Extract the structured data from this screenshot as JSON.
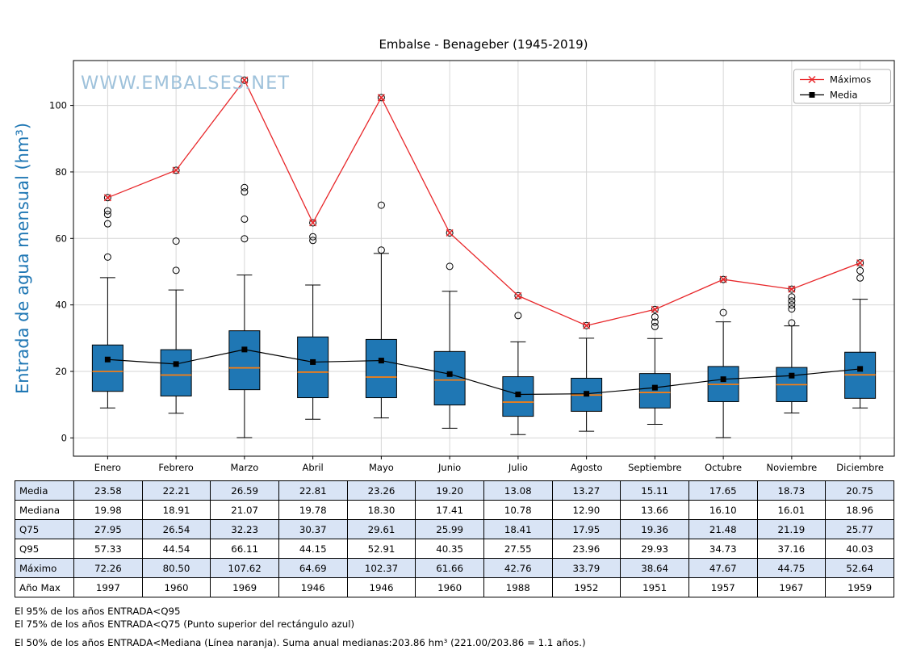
{
  "title": "Embalse - Benageber (1945-2019)",
  "watermark": "WWW.EMBALSES.NET",
  "ylabel": "Entrada de agua mensual (hm³)",
  "legend": {
    "maximos_label": "Máximos",
    "media_label": "Media"
  },
  "colors": {
    "box_fill": "#1f77b4",
    "median": "#ff7f0e",
    "max_line": "#e8272a",
    "mean_line": "#000000",
    "axis_label": "#1f77b4",
    "watermark": "#9fc2db",
    "grid": "#d6d6d6",
    "table_shaded": "#d9e4f5"
  },
  "chart_data": {
    "type": "boxplot",
    "title": "Embalse - Benageber (1945-2019)",
    "xlabel": "",
    "ylabel": "Entrada de agua mensual (hm³)",
    "grid": true,
    "legend_position": "top-right",
    "categories": [
      "Enero",
      "Febrero",
      "Marzo",
      "Abril",
      "Mayo",
      "Junio",
      "Julio",
      "Agosto",
      "Septiembre",
      "Octubre",
      "Noviembre",
      "Diciembre"
    ],
    "yticks": [
      0,
      20,
      40,
      60,
      80,
      100
    ],
    "ylim": [
      -5.5,
      113.5
    ],
    "boxes": [
      {
        "q1": 14.0,
        "median": 19.98,
        "q3": 27.95,
        "whisker_low": 9.0,
        "whisker_high": 48.2,
        "outliers": [
          54.4,
          64.4,
          67.2,
          68.3,
          72.26
        ]
      },
      {
        "q1": 12.6,
        "median": 18.91,
        "q3": 26.54,
        "whisker_low": 7.4,
        "whisker_high": 44.5,
        "outliers": [
          50.4,
          59.2,
          80.5
        ]
      },
      {
        "q1": 14.5,
        "median": 21.07,
        "q3": 32.23,
        "whisker_low": 0.1,
        "whisker_high": 49.0,
        "outliers": [
          59.9,
          65.8,
          74.0,
          75.3,
          107.62
        ]
      },
      {
        "q1": 12.1,
        "median": 19.78,
        "q3": 30.37,
        "whisker_low": 5.6,
        "whisker_high": 46.0,
        "outliers": [
          59.4,
          60.5,
          64.69
        ]
      },
      {
        "q1": 12.1,
        "median": 18.3,
        "q3": 29.61,
        "whisker_low": 6.0,
        "whisker_high": 55.5,
        "outliers": [
          56.5,
          70.0,
          102.37
        ]
      },
      {
        "q1": 9.9,
        "median": 17.41,
        "q3": 25.99,
        "whisker_low": 2.9,
        "whisker_high": 44.1,
        "outliers": [
          51.6,
          61.66
        ]
      },
      {
        "q1": 6.5,
        "median": 10.78,
        "q3": 18.41,
        "whisker_low": 1.0,
        "whisker_high": 28.9,
        "outliers": [
          36.8,
          42.76
        ]
      },
      {
        "q1": 8.0,
        "median": 12.9,
        "q3": 17.95,
        "whisker_low": 2.0,
        "whisker_high": 30.0,
        "outliers": [
          33.79
        ]
      },
      {
        "q1": 9.0,
        "median": 13.66,
        "q3": 19.36,
        "whisker_low": 4.1,
        "whisker_high": 29.9,
        "outliers": [
          33.5,
          34.8,
          36.4,
          38.64
        ]
      },
      {
        "q1": 10.9,
        "median": 16.1,
        "q3": 21.48,
        "whisker_low": 0.1,
        "whisker_high": 34.9,
        "outliers": [
          37.7,
          47.67
        ]
      },
      {
        "q1": 10.9,
        "median": 16.01,
        "q3": 21.19,
        "whisker_low": 7.5,
        "whisker_high": 33.7,
        "outliers": [
          34.6,
          38.8,
          40.0,
          41.2,
          42.4,
          44.75
        ]
      },
      {
        "q1": 11.9,
        "median": 18.96,
        "q3": 25.77,
        "whisker_low": 9.0,
        "whisker_high": 41.7,
        "outliers": [
          48.1,
          50.3,
          52.64
        ]
      }
    ],
    "series": [
      {
        "name": "Máximos",
        "marker": "x",
        "color": "#e8272a",
        "values": [
          72.26,
          80.5,
          107.62,
          64.69,
          102.37,
          61.66,
          42.76,
          33.79,
          38.64,
          47.67,
          44.75,
          52.64
        ]
      },
      {
        "name": "Media",
        "marker": "square",
        "color": "#000000",
        "values": [
          23.58,
          22.21,
          26.59,
          22.81,
          23.26,
          19.2,
          13.08,
          13.27,
          15.11,
          17.65,
          18.73,
          20.75
        ]
      }
    ]
  },
  "table": {
    "rows": [
      {
        "label": "Media",
        "shaded": true,
        "values": [
          "23.58",
          "22.21",
          "26.59",
          "22.81",
          "23.26",
          "19.20",
          "13.08",
          "13.27",
          "15.11",
          "17.65",
          "18.73",
          "20.75"
        ]
      },
      {
        "label": "Mediana",
        "shaded": false,
        "values": [
          "19.98",
          "18.91",
          "21.07",
          "19.78",
          "18.30",
          "17.41",
          "10.78",
          "12.90",
          "13.66",
          "16.10",
          "16.01",
          "18.96"
        ]
      },
      {
        "label": "Q75",
        "shaded": true,
        "values": [
          "27.95",
          "26.54",
          "32.23",
          "30.37",
          "29.61",
          "25.99",
          "18.41",
          "17.95",
          "19.36",
          "21.48",
          "21.19",
          "25.77"
        ]
      },
      {
        "label": "Q95",
        "shaded": false,
        "values": [
          "57.33",
          "44.54",
          "66.11",
          "44.15",
          "52.91",
          "40.35",
          "27.55",
          "23.96",
          "29.93",
          "34.73",
          "37.16",
          "40.03"
        ]
      },
      {
        "label": "Máximo",
        "shaded": true,
        "values": [
          "72.26",
          "80.50",
          "107.62",
          "64.69",
          "102.37",
          "61.66",
          "42.76",
          "33.79",
          "38.64",
          "47.67",
          "44.75",
          "52.64"
        ]
      },
      {
        "label": "Año Max",
        "shaded": false,
        "values": [
          "1997",
          "1960",
          "1969",
          "1946",
          "1946",
          "1960",
          "1988",
          "1952",
          "1951",
          "1957",
          "1967",
          "1959"
        ]
      }
    ]
  },
  "footnotes": [
    "El 95% de los años ENTRADA<Q95",
    "El 75% de los años ENTRADA<Q75 (Punto superior del rectángulo azul)",
    "El 50% de los años ENTRADA<Mediana (Línea naranja). Suma anual medianas:203.86 hm³ (221.00/203.86 = 1.1 años.)"
  ]
}
